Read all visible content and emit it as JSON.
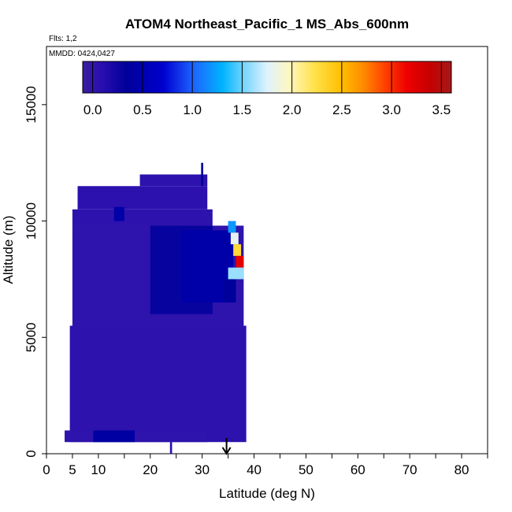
{
  "chart_data": {
    "type": "heatmap",
    "title": "ATOM4 Northeast_Pacific_1 MS_Abs_600nm",
    "flights_note": "Flts: 1,2",
    "date_note": "MMDD: 0424,0427",
    "xlabel": "Latitude (deg N)",
    "ylabel": "Altitude (m)",
    "xlim": [
      0,
      85
    ],
    "ylim": [
      0,
      17500
    ],
    "x_ticks": [
      0,
      5,
      10,
      20,
      30,
      40,
      50,
      60,
      70,
      80
    ],
    "y_ticks": [
      0,
      5000,
      10000,
      15000
    ],
    "arrow_marker_x": 34.7,
    "colorbar": {
      "min": -0.1,
      "max": 3.6,
      "ticks": [
        0.0,
        0.5,
        1.0,
        1.5,
        2.0,
        2.5,
        3.0,
        3.5
      ],
      "tick_labels": [
        "0.0",
        "0.5",
        "1.0",
        "1.5",
        "2.0",
        "2.5",
        "3.0",
        "3.5"
      ]
    },
    "regions": [
      {
        "x0": 4.5,
        "x1": 38.5,
        "y0": 500,
        "y1": 5500,
        "value": 0.05
      },
      {
        "x0": 5.0,
        "x1": 38.0,
        "y0": 5500,
        "y1": 9800,
        "value": 0.04
      },
      {
        "x0": 5.0,
        "x1": 32.0,
        "y0": 9800,
        "y1": 10500,
        "value": 0.05
      },
      {
        "x0": 6.0,
        "x1": 31.0,
        "y0": 10500,
        "y1": 11500,
        "value": 0.06
      },
      {
        "x0": 18.0,
        "x1": 31.0,
        "y0": 11500,
        "y1": 12000,
        "value": 0.05
      },
      {
        "x0": 3.5,
        "x1": 31.0,
        "y0": 500,
        "y1": 1000,
        "value": 0.04
      },
      {
        "x0": 9.0,
        "x1": 17.0,
        "y0": 500,
        "y1": 1000,
        "value": 0.4
      },
      {
        "x0": 20.0,
        "x1": 32.0,
        "y0": 6000,
        "y1": 9800,
        "value": 0.3
      },
      {
        "x0": 26.0,
        "x1": 36.0,
        "y0": 6500,
        "y1": 9600,
        "value": 0.45
      },
      {
        "x0": 34.0,
        "x1": 36.5,
        "y0": 6500,
        "y1": 7500,
        "value": 0.35
      },
      {
        "x0": 13.0,
        "x1": 15.0,
        "y0": 10000,
        "y1": 10600,
        "value": 0.45
      },
      {
        "x0": 35.0,
        "x1": 36.5,
        "y0": 9500,
        "y1": 10000,
        "value": 1.2
      },
      {
        "x0": 35.5,
        "x1": 37.0,
        "y0": 9000,
        "y1": 9500,
        "value": 1.8
      },
      {
        "x0": 36.0,
        "x1": 37.5,
        "y0": 8500,
        "y1": 9000,
        "value": 2.3
      },
      {
        "x0": 36.5,
        "x1": 38.0,
        "y0": 8000,
        "y1": 8500,
        "value": 3.2
      },
      {
        "x0": 35.0,
        "x1": 38.0,
        "y0": 7500,
        "y1": 8000,
        "value": 1.6
      },
      {
        "x0": 29.8,
        "x1": 30.2,
        "y0": 11500,
        "y1": 12500,
        "value": 0.35
      },
      {
        "x0": 23.8,
        "x1": 24.2,
        "y0": 0,
        "y1": 500,
        "value": 0.1
      }
    ]
  }
}
